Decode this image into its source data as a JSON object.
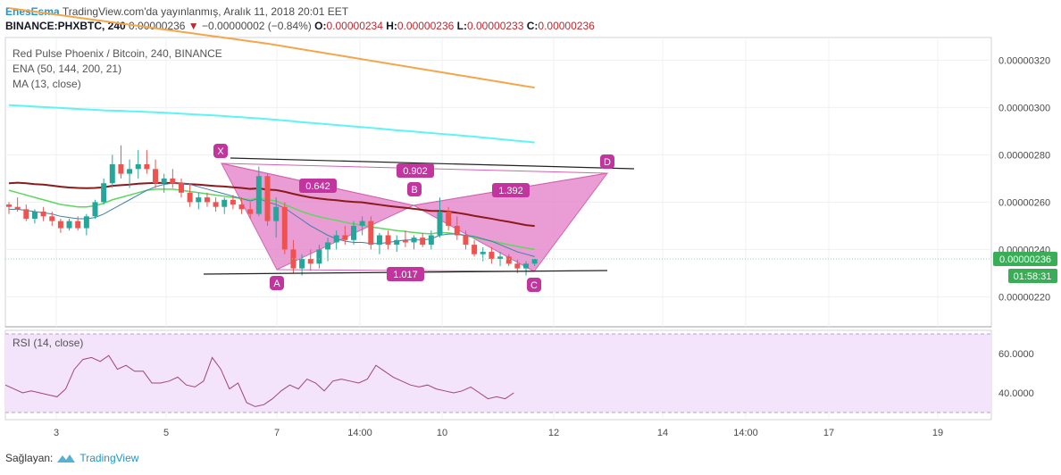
{
  "header": {
    "author": "EnesEsma",
    "published": "TradingView.com'da yayınlanmış, Aralık 11, 2018 20:01 EET",
    "symbol": "BINANCE:PHXBTC, 240",
    "last": "0.00000236",
    "change": "−0.00000002 (−0.84%)",
    "o_label": "O:",
    "o_value": "0.00000234",
    "h_label": "H:",
    "h_value": "0.00000236",
    "l_label": "L:",
    "l_value": "0.00000233",
    "c_label": "C:",
    "c_value": "0.00000236"
  },
  "legends": {
    "title": "Red Pulse Phoenix / Bitcoin, 240, BINANCE",
    "ema": "ENA (50, 144, 200, 21)",
    "ma": "MA (13, close)",
    "rsi": "RSI (14, close)"
  },
  "footer": {
    "provider_label": "Sağlayan:",
    "brand": "TradingView"
  },
  "colors": {
    "up": "#26a69a",
    "down": "#ef5350",
    "ema50": "#8b1a1a",
    "ema144": "#5cf4f4",
    "ema200": "#f5a54a",
    "ema21": "#5bd85b",
    "ma13": "#3e7fa8",
    "pattern_fill": "#e37cc7",
    "label_bg": "#c2359f",
    "rsi_line": "#a0457a",
    "rsi_band": "#f3e3fb",
    "price_tag": "#3aae57"
  },
  "chart_data": [
    {
      "type": "candlestick",
      "title": "Red Pulse Phoenix / Bitcoin, 240, BINANCE",
      "x_tick_labels": [
        "3",
        "5",
        "7",
        "14:00",
        "10",
        "12",
        "14",
        "14:00",
        "17",
        "19"
      ],
      "y_tick_labels": [
        "0.00000320",
        "0.00000300",
        "0.00000280",
        "0.00000260",
        "0.00000240",
        "0.00000220"
      ],
      "ylim": [
        2.05e-06,
        3.4e-06
      ],
      "last_price": "0.00000236",
      "countdown": "01:58:31",
      "candles_ohlc_e8": [
        [
          259,
          260,
          255,
          258
        ],
        [
          258,
          262,
          256,
          257
        ],
        [
          257,
          259,
          252,
          253
        ],
        [
          253,
          257,
          251,
          256
        ],
        [
          256,
          258,
          252,
          254
        ],
        [
          254,
          256,
          250,
          252
        ],
        [
          252,
          253,
          247,
          249
        ],
        [
          249,
          253,
          248,
          252
        ],
        [
          252,
          254,
          248,
          249
        ],
        [
          249,
          255,
          246,
          254
        ],
        [
          254,
          261,
          253,
          260
        ],
        [
          260,
          270,
          259,
          268
        ],
        [
          268,
          280,
          266,
          276
        ],
        [
          276,
          284,
          270,
          272
        ],
        [
          272,
          278,
          266,
          274
        ],
        [
          274,
          282,
          270,
          276
        ],
        [
          276,
          282,
          272,
          274
        ],
        [
          274,
          278,
          266,
          268
        ],
        [
          268,
          272,
          264,
          270
        ],
        [
          270,
          274,
          266,
          268
        ],
        [
          268,
          270,
          262,
          264
        ],
        [
          264,
          268,
          258,
          260
        ],
        [
          260,
          264,
          257,
          262
        ],
        [
          262,
          264,
          258,
          260
        ],
        [
          260,
          262,
          256,
          258
        ],
        [
          258,
          262,
          255,
          261
        ],
        [
          261,
          263,
          257,
          259
        ],
        [
          259,
          262,
          255,
          257
        ],
        [
          257,
          260,
          253,
          255
        ],
        [
          255,
          275,
          254,
          271
        ],
        [
          271,
          272,
          250,
          252
        ],
        [
          252,
          262,
          245,
          258
        ],
        [
          258,
          260,
          238,
          240
        ],
        [
          240,
          244,
          230,
          232
        ],
        [
          232,
          238,
          229,
          236
        ],
        [
          236,
          240,
          231,
          234
        ],
        [
          234,
          242,
          232,
          240
        ],
        [
          240,
          245,
          235,
          243
        ],
        [
          243,
          248,
          240,
          246
        ],
        [
          246,
          250,
          242,
          244
        ],
        [
          244,
          252,
          242,
          250
        ],
        [
          250,
          254,
          246,
          252
        ],
        [
          252,
          254,
          240,
          242
        ],
        [
          242,
          247,
          238,
          246
        ],
        [
          246,
          248,
          240,
          242
        ],
        [
          242,
          246,
          239,
          244
        ],
        [
          244,
          248,
          241,
          243
        ],
        [
          243,
          246,
          240,
          245
        ],
        [
          245,
          247,
          241,
          242
        ],
        [
          242,
          248,
          240,
          246
        ],
        [
          246,
          262,
          245,
          256
        ],
        [
          256,
          258,
          248,
          250
        ],
        [
          250,
          254,
          244,
          246
        ],
        [
          246,
          248,
          240,
          242
        ],
        [
          242,
          244,
          237,
          238
        ],
        [
          238,
          241,
          235,
          239
        ],
        [
          239,
          241,
          234,
          236
        ],
        [
          236,
          239,
          233,
          237
        ],
        [
          237,
          238,
          233,
          234
        ],
        [
          234,
          236,
          230,
          232
        ],
        [
          232,
          235,
          229,
          234
        ],
        [
          234,
          236,
          233,
          236
        ]
      ],
      "series": [
        {
          "name": "EMA 50",
          "values_e8": [
            268,
            268.2,
            268,
            267.6,
            267.4,
            267,
            266.5,
            266.2,
            266,
            265.9,
            266,
            266.3,
            266.9,
            267.2,
            267.4,
            267.8,
            268,
            268.1,
            268.1,
            268.1,
            267.9,
            267.6,
            267.4,
            267.1,
            266.8,
            266.6,
            266.3,
            266,
            265.6,
            265.8,
            265.3,
            265.1,
            264.4,
            263.5,
            262.7,
            262,
            261.5,
            261.1,
            260.8,
            260.4,
            260.1,
            259.9,
            259.4,
            258.9,
            258.4,
            258,
            257.6,
            257.2,
            256.7,
            256.3,
            256.3,
            256,
            255.5,
            254.9,
            254.2,
            253.6,
            253,
            252.3,
            251.7,
            251,
            250.3,
            249.9
          ]
        },
        {
          "name": "EMA 144",
          "values_e8": [
            301,
            300.8,
            300.6,
            300.4,
            300.2,
            300,
            299.8,
            299.6,
            299.4,
            299.2,
            299,
            298.8,
            298.7,
            298.6,
            298.4,
            298.3,
            298.1,
            298,
            297.8,
            297.6,
            297.4,
            297.2,
            297,
            296.8,
            296.6,
            296.4,
            296.1,
            295.9,
            295.6,
            295.4,
            295.1,
            294.8,
            294.5,
            294.2,
            293.8,
            293.5,
            293.2,
            292.9,
            292.6,
            292.3,
            292,
            291.7,
            291.4,
            291.1,
            290.7,
            290.4,
            290.1,
            289.8,
            289.5,
            289.2,
            288.9,
            288.6,
            288.3,
            288,
            287.7,
            287.3,
            287,
            286.6,
            286.3,
            285.9,
            285.6,
            285.2
          ]
        },
        {
          "name": "EMA 200",
          "values_e8": [
            342,
            341.5,
            341,
            340.5,
            340,
            339.5,
            339,
            338.5,
            338,
            337.5,
            337,
            336.5,
            336,
            335.5,
            335,
            334.5,
            334,
            333.5,
            333,
            332.5,
            332,
            331.5,
            331,
            330.5,
            330,
            329.5,
            329,
            328.5,
            328,
            327.5,
            327,
            326.4,
            325.8,
            325.2,
            324.6,
            324,
            323.4,
            322.8,
            322.2,
            321.6,
            321,
            320.4,
            319.8,
            319.2,
            318.6,
            318,
            317.4,
            316.8,
            316.2,
            315.6,
            315,
            314.4,
            313.8,
            313.2,
            312.6,
            312,
            311.4,
            310.8,
            310.2,
            309.6,
            309,
            308.4
          ]
        },
        {
          "name": "EMA 21",
          "values_e8": [
            265,
            264,
            263,
            262,
            261,
            260,
            259,
            258.5,
            258,
            258,
            258.5,
            259.5,
            261,
            262,
            263,
            264,
            265,
            265.5,
            265.5,
            265.5,
            265,
            264.5,
            264,
            263.5,
            263,
            262.5,
            262,
            261.5,
            261,
            262,
            261,
            260.5,
            259,
            257.5,
            256,
            254.8,
            253.8,
            253,
            252.3,
            251.5,
            250.8,
            250.3,
            249.5,
            249,
            248.5,
            248,
            247.6,
            247.2,
            246.8,
            246.6,
            247.2,
            247,
            246.5,
            245.8,
            245,
            244.3,
            243.5,
            242.8,
            242,
            241.3,
            240.6,
            240
          ]
        },
        {
          "name": "MA 13",
          "values_e8": [
            257,
            257,
            256.5,
            256,
            255.5,
            255,
            254,
            253.5,
            253,
            253,
            253.5,
            255,
            257,
            259,
            261,
            263,
            265,
            266.5,
            267.5,
            268,
            268,
            267.5,
            266.5,
            265.5,
            264.5,
            263.5,
            262.5,
            261.5,
            260.5,
            261.5,
            260,
            259,
            257.5,
            255,
            252.5,
            250,
            248,
            246,
            244.5,
            243.5,
            243,
            243,
            242.5,
            242.5,
            243,
            243.5,
            244,
            244,
            244,
            244.5,
            246,
            246.5,
            246.5,
            246,
            245.5,
            244.5,
            243.5,
            242,
            240.5,
            239,
            238,
            237
          ]
        }
      ],
      "annotations": {
        "points": [
          "X",
          "A",
          "B",
          "C",
          "D"
        ],
        "ratios": [
          "0.642",
          "0.902",
          "1.392",
          "1.017"
        ]
      },
      "grid": true
    },
    {
      "type": "line",
      "title": "RSI (14, close)",
      "y_tick_labels": [
        "60.0000",
        "40.0000"
      ],
      "ylim": [
        28,
        72
      ],
      "band": [
        30,
        70
      ],
      "values": [
        44,
        42,
        40,
        41,
        40,
        39,
        38,
        42,
        52,
        57,
        58,
        56,
        59,
        52,
        54,
        51,
        51,
        45,
        45,
        46,
        48,
        44,
        43,
        46,
        58,
        52,
        42,
        45,
        35,
        33,
        34,
        37,
        41,
        44,
        42,
        47,
        45,
        41,
        46,
        47,
        46,
        45,
        47,
        54,
        51,
        48,
        46,
        44,
        43,
        44,
        42,
        41,
        40,
        41,
        43,
        40,
        37,
        38,
        37,
        40
      ]
    }
  ]
}
